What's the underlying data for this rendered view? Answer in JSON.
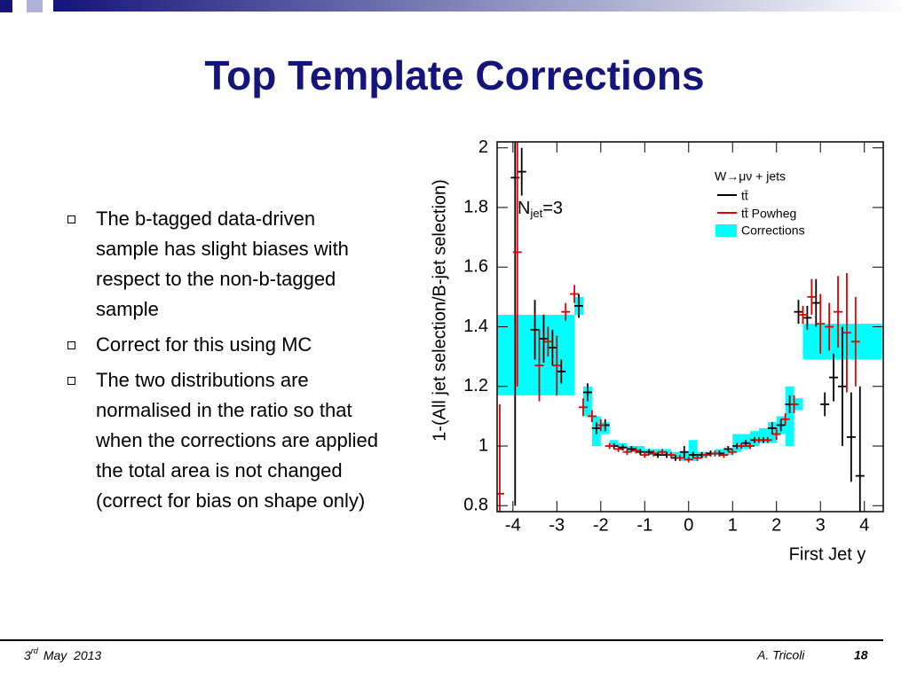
{
  "header": {
    "title": "Top Template Corrections"
  },
  "bullets": [
    "The b-tagged data-driven sample has slight biases with respect to the non-b-tagged sample",
    "Correct for this using MC",
    "The two distributions are normalised in the ratio so that when the corrections are applied the total area is not changed (correct for bias on shape only)"
  ],
  "footer": {
    "day": "3",
    "day_suffix": "rd",
    "date_rest": "May  2013",
    "author": "A. Tricoli",
    "page": "18"
  },
  "chart_data": {
    "type": "errorbar",
    "xlabel": "First Jet y",
    "ylabel": "1-(All jet selection/B-jet selection)",
    "legend_title": "W→μν + jets",
    "annotation": {
      "main": "N",
      "sub": "jet",
      "rest": "=3"
    },
    "xlim": [
      -4.36,
      4.43
    ],
    "ylim": [
      0.78,
      2.02
    ],
    "xticks": [
      -4,
      -3,
      -2,
      -1,
      0,
      1,
      2,
      3,
      4
    ],
    "yticks": [
      0.8,
      1,
      1.2,
      1.4,
      1.6,
      1.8,
      2
    ],
    "corrections": {
      "name": "Corrections",
      "color": "#00ffff",
      "edges": [
        -4.4,
        -2.6,
        -2.4,
        -2.2,
        -2.0,
        -1.8,
        -1.6,
        -1.4,
        -1.2,
        -1.0,
        -0.8,
        -0.6,
        -0.4,
        -0.2,
        0,
        0.2,
        0.4,
        0.6,
        0.8,
        1.0,
        1.2,
        1.4,
        1.6,
        1.8,
        2.0,
        2.2,
        2.4,
        2.6,
        4.4
      ],
      "low": [
        1.17,
        1.44,
        1.1,
        1.0,
        1.04,
        1.0,
        0.99,
        0.98,
        0.98,
        0.97,
        0.97,
        0.97,
        0.96,
        0.95,
        0.95,
        0.96,
        0.97,
        0.97,
        0.97,
        0.98,
        0.99,
        1.0,
        1.01,
        1.01,
        1.04,
        1.0,
        1.12,
        1.29
      ],
      "high": [
        1.44,
        1.5,
        1.2,
        1.1,
        1.08,
        1.02,
        1.01,
        1.0,
        1.0,
        0.99,
        0.99,
        0.99,
        0.98,
        0.98,
        1.02,
        0.98,
        0.98,
        0.99,
        0.99,
        1.04,
        1.04,
        1.05,
        1.06,
        1.08,
        1.1,
        1.2,
        1.16,
        1.41
      ]
    },
    "series": [
      {
        "name": "tt̄",
        "color": "#000000",
        "x": [
          -3.95,
          -3.8,
          -3.5,
          -3.3,
          -3.1,
          -2.9,
          -2.5,
          -2.3,
          -2.1,
          -1.9,
          -1.7,
          -1.5,
          -1.3,
          -1.1,
          -0.9,
          -0.7,
          -0.5,
          -0.3,
          -0.1,
          0.1,
          0.3,
          0.5,
          0.7,
          0.9,
          1.1,
          1.3,
          1.5,
          1.7,
          1.9,
          2.1,
          2.3,
          2.5,
          2.7,
          2.9,
          3.1,
          3.3,
          3.5,
          3.7,
          3.9
        ],
        "values": [
          1.9,
          1.92,
          1.39,
          1.36,
          1.33,
          1.25,
          1.47,
          1.18,
          1.06,
          1.07,
          1.0,
          0.995,
          0.99,
          0.98,
          0.98,
          0.97,
          0.97,
          0.96,
          0.98,
          0.97,
          0.97,
          0.975,
          0.975,
          0.99,
          1.0,
          1.01,
          1.02,
          1.02,
          1.06,
          1.07,
          1.14,
          1.45,
          1.43,
          1.48,
          1.14,
          1.23,
          1.2,
          1.03,
          0.9
        ],
        "errors": [
          1.1,
          0.08,
          0.1,
          0.08,
          0.06,
          0.04,
          0.04,
          0.03,
          0.02,
          0.02,
          0.01,
          0.01,
          0.01,
          0.01,
          0.01,
          0.01,
          0.01,
          0.01,
          0.02,
          0.01,
          0.01,
          0.01,
          0.01,
          0.01,
          0.01,
          0.01,
          0.01,
          0.01,
          0.02,
          0.02,
          0.03,
          0.04,
          0.04,
          0.08,
          0.04,
          0.08,
          0.2,
          0.15,
          0.3
        ]
      },
      {
        "name": "tt̄ Powheg",
        "color": "#e00000",
        "x": [
          -4.3,
          -3.9,
          -3.4,
          -3.2,
          -3.0,
          -2.8,
          -2.6,
          -2.4,
          -2.2,
          -2.0,
          -1.8,
          -1.6,
          -1.4,
          -1.2,
          -1.0,
          -0.8,
          -0.6,
          -0.4,
          -0.2,
          0.0,
          0.2,
          0.4,
          0.6,
          0.8,
          1.0,
          1.2,
          1.4,
          1.6,
          1.8,
          2.0,
          2.2,
          2.4,
          2.6,
          2.8,
          3.0,
          3.2,
          3.4,
          3.6,
          3.8
        ],
        "values": [
          0.84,
          1.65,
          1.27,
          1.35,
          1.27,
          1.45,
          1.51,
          1.13,
          1.1,
          1.07,
          1.0,
          0.99,
          0.98,
          0.985,
          0.97,
          0.975,
          0.98,
          0.97,
          0.96,
          0.955,
          0.96,
          0.97,
          0.975,
          0.97,
          0.98,
          1.0,
          1.0,
          1.02,
          1.02,
          1.04,
          1.09,
          1.14,
          1.44,
          1.5,
          1.41,
          1.4,
          1.45,
          1.38,
          1.35
        ],
        "errors": [
          0.3,
          0.45,
          0.12,
          0.05,
          0.1,
          0.03,
          0.03,
          0.03,
          0.02,
          0.02,
          0.01,
          0.01,
          0.01,
          0.01,
          0.01,
          0.01,
          0.01,
          0.01,
          0.01,
          0.01,
          0.01,
          0.01,
          0.01,
          0.01,
          0.01,
          0.01,
          0.01,
          0.01,
          0.01,
          0.02,
          0.02,
          0.03,
          0.03,
          0.06,
          0.1,
          0.08,
          0.12,
          0.2,
          0.15
        ]
      }
    ]
  }
}
